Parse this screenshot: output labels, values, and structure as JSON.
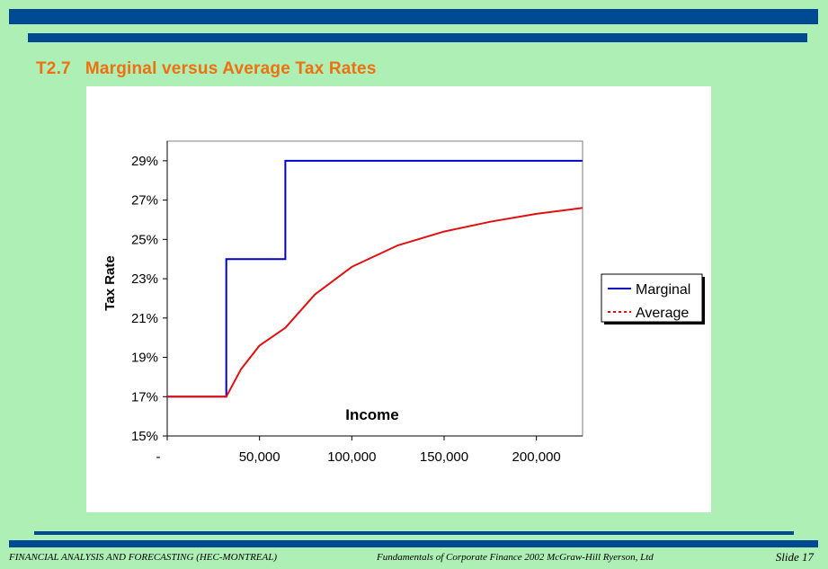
{
  "slide": {
    "title_number": "T2.7",
    "title_text": "Marginal versus Average Tax Rates",
    "footer_course": "FINANCIAL ANALYSIS AND FORECASTING (HEC-MONTREAL)",
    "footer_book": "Fundamentals of Corporate Finance 2002 McGraw-Hill Ryerson, Ltd",
    "footer_slide": "Slide 17"
  },
  "colors": {
    "background": "#adefb4",
    "bars": "#004a94",
    "title": "#f07010",
    "marginal": "#0000c0",
    "average": "#e01010"
  },
  "chart_data": {
    "type": "line",
    "title": "",
    "xlabel": "Income",
    "ylabel": "Tax Rate",
    "xlim": [
      0,
      225000
    ],
    "ylim": [
      0.15,
      0.3
    ],
    "x_ticks": [
      0,
      50000,
      100000,
      150000,
      200000
    ],
    "x_tick_labels": [
      "-",
      "50,000",
      "100,000",
      "150,000",
      "200,000"
    ],
    "y_ticks": [
      0.15,
      0.17,
      0.19,
      0.21,
      0.23,
      0.25,
      0.27,
      0.29
    ],
    "y_tick_labels": [
      "15%",
      "17%",
      "19%",
      "21%",
      "23%",
      "25%",
      "27%",
      "29%"
    ],
    "grid": false,
    "legend_position": "right",
    "series": [
      {
        "name": "Marginal",
        "style": "solid",
        "x": [
          0,
          32000,
          32000,
          64000,
          64000,
          225000
        ],
        "y": [
          0.17,
          0.17,
          0.24,
          0.24,
          0.29,
          0.29
        ]
      },
      {
        "name": "Average",
        "style": "dotted",
        "x": [
          0,
          32000,
          40000,
          50000,
          64000,
          80000,
          100000,
          125000,
          150000,
          175000,
          200000,
          225000
        ],
        "y": [
          0.17,
          0.17,
          0.184,
          0.196,
          0.205,
          0.222,
          0.236,
          0.247,
          0.254,
          0.259,
          0.263,
          0.266
        ]
      }
    ]
  }
}
